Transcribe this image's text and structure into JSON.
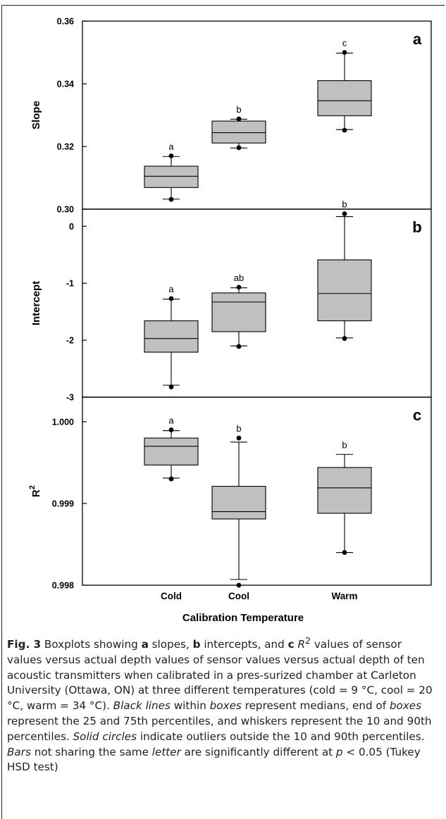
{
  "chart_data": {
    "type": "box",
    "x_axis": {
      "title": "Calibration Temperature",
      "categories": [
        "Cold",
        "Cool",
        "Warm"
      ]
    },
    "panels": [
      {
        "id": "a",
        "panel_label": "a",
        "ylabel": "Slope",
        "ylim": [
          0.3,
          0.36
        ],
        "yticks": [
          0.3,
          0.32,
          0.34,
          0.36
        ],
        "ytick_labels": [
          "0.30",
          "0.32",
          "0.34",
          "0.36"
        ],
        "boxes": [
          {
            "category": "Cold",
            "q1": 0.3069,
            "median": 0.3105,
            "q3": 0.3137,
            "whisker_low": 0.3032,
            "whisker_high": 0.3168,
            "outliers": [
              0.3031,
              0.317
            ],
            "letter": "a"
          },
          {
            "category": "Cool",
            "q1": 0.3211,
            "median": 0.3244,
            "q3": 0.3281,
            "whisker_low": 0.3195,
            "whisker_high": 0.3287,
            "outliers": [
              0.3196,
              0.3288
            ],
            "letter": "b"
          },
          {
            "category": "Warm",
            "q1": 0.3298,
            "median": 0.3346,
            "q3": 0.341,
            "whisker_low": 0.3254,
            "whisker_high": 0.3498,
            "outliers": [
              0.3252,
              0.35
            ],
            "letter": "c"
          }
        ]
      },
      {
        "id": "b",
        "panel_label": "b",
        "ylabel": "Intercept",
        "ylim": [
          -3.0,
          0.3
        ],
        "yticks": [
          -3,
          -2,
          -1,
          0
        ],
        "ytick_labels": [
          "-3",
          "-2",
          "-1",
          "0"
        ],
        "boxes": [
          {
            "category": "Cold",
            "q1": -2.21,
            "median": -1.97,
            "q3": -1.66,
            "whisker_low": -2.79,
            "whisker_high": -1.28,
            "outliers": [
              -2.82,
              -1.27
            ],
            "letter": "a"
          },
          {
            "category": "Cool",
            "q1": -1.85,
            "median": -1.33,
            "q3": -1.17,
            "whisker_low": -2.1,
            "whisker_high": -1.08,
            "outliers": [
              -2.11,
              -1.07
            ],
            "letter": "ab"
          },
          {
            "category": "Warm",
            "q1": -1.66,
            "median": -1.18,
            "q3": -0.59,
            "whisker_low": -1.96,
            "whisker_high": 0.17,
            "outliers": [
              -1.97,
              0.22
            ],
            "letter": "b"
          }
        ]
      },
      {
        "id": "c",
        "panel_label": "c",
        "ylabel": "R",
        "ylabel_superscript": "2",
        "ylim": [
          0.998,
          1.0003
        ],
        "yticks": [
          0.998,
          0.999,
          1.0
        ],
        "ytick_labels": [
          "0.998",
          "0.999",
          "1.000"
        ],
        "boxes": [
          {
            "category": "Cold",
            "q1": 0.99947,
            "median": 0.9997,
            "q3": 0.9998,
            "whisker_low": 0.99931,
            "whisker_high": 0.99989,
            "outliers": [
              0.9993,
              0.9999
            ],
            "letter": "a"
          },
          {
            "category": "Cool",
            "q1": 0.99881,
            "median": 0.9989,
            "q3": 0.99921,
            "whisker_low": 0.99807,
            "whisker_high": 0.99975,
            "outliers": [
              0.998,
              0.9998
            ],
            "letter": "b"
          },
          {
            "category": "Warm",
            "q1": 0.99888,
            "median": 0.99919,
            "q3": 0.99944,
            "whisker_low": 0.9984,
            "whisker_high": 0.9996,
            "outliers": [
              0.9984
            ],
            "letter": "b"
          }
        ]
      }
    ]
  },
  "caption": {
    "fig_label": "Fig. 3",
    "segments": [
      {
        "t": "  Boxplots showing "
      },
      {
        "t": "a",
        "b": true
      },
      {
        "t": " slopes, "
      },
      {
        "t": "b",
        "b": true
      },
      {
        "t": " intercepts, and "
      },
      {
        "t": "c",
        "b": true
      },
      {
        "t": " "
      },
      {
        "t": "R",
        "i": true
      },
      {
        "t": "2",
        "sup": true
      },
      {
        "t": " values of sensor values versus actual depth values of sensor values versus actual depth of ten acoustic transmitters when calibrated in a pres-surized chamber at Carleton University (Ottawa, ON) at three different temperatures (cold = 9 °C, cool = 20 °C, warm = 34 °C). "
      },
      {
        "t": "Black lines",
        "i": true
      },
      {
        "t": " within "
      },
      {
        "t": "boxes",
        "i": true
      },
      {
        "t": " represent medians, end of "
      },
      {
        "t": "boxes",
        "i": true
      },
      {
        "t": " represent the 25 and 75th percentiles, and whiskers represent the 10 and 90th percentiles. "
      },
      {
        "t": "Solid circles",
        "i": true
      },
      {
        "t": " indicate outliers outside the 10 and 90th percentiles. "
      },
      {
        "t": "Bars",
        "i": true
      },
      {
        "t": " not sharing the same "
      },
      {
        "t": "letter",
        "i": true
      },
      {
        "t": " are significantly different at "
      },
      {
        "t": "p",
        "i": true
      },
      {
        "t": " < 0.05 (Tukey HSD test)"
      }
    ]
  }
}
